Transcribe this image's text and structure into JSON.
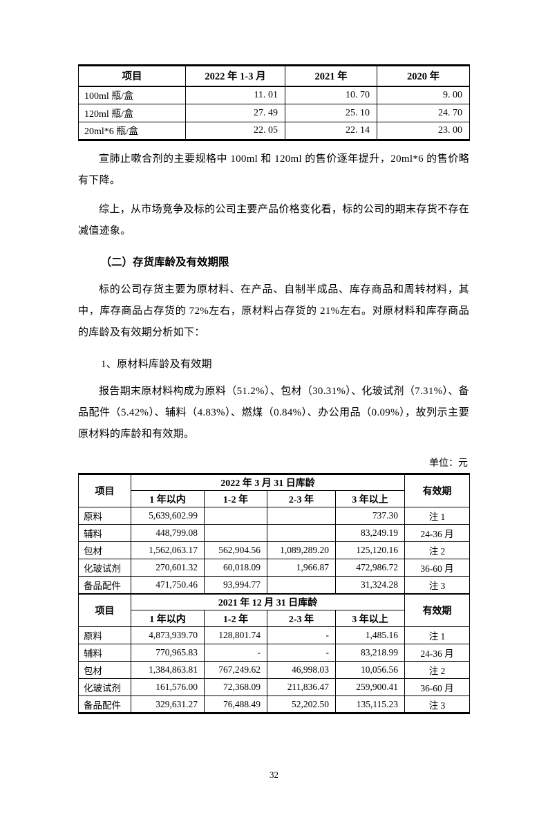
{
  "page": {
    "number": "32",
    "unit_label": "单位：元"
  },
  "price_table": {
    "headers": [
      "项目",
      "2022 年 1-3 月",
      "2021 年",
      "2020 年"
    ],
    "rows": [
      {
        "label": "100ml 瓶/盒",
        "values": [
          "11. 01",
          "10. 70",
          "9. 00"
        ]
      },
      {
        "label": "120ml 瓶/盒",
        "values": [
          "27. 49",
          "25. 10",
          "24. 70"
        ]
      },
      {
        "label": "20ml*6 瓶/盒",
        "values": [
          "22. 05",
          "22. 14",
          "23. 00"
        ]
      }
    ]
  },
  "paragraphs": {
    "p1": "宣肺止嗽合剂的主要规格中 100ml 和 120ml 的售价逐年提升，20ml*6 的售价略有下降。",
    "p2": "综上，从市场竞争及标的公司主要产品价格变化看，标的公司的期末存货不存在减值迹象。",
    "h1": "（二）存货库龄及有效期限",
    "p3": "标的公司存货主要为原材料、在产品、自制半成品、库存商品和周转材料，其中，库存商品占存货的 72%左右，原材料占存货的 21%左右。对原材料和库存商品的库龄及有效期分析如下：",
    "h2": "1、原材料库龄及有效期",
    "p4": "报告期末原材料构成为原料（51.2%）、包材（30.31%）、化玻试剂（7.31%）、备品配件（5.42%）、辅料（4.83%）、燃煤（0.84%）、办公用品（0.09%），故列示主要原材料的库龄和有效期。"
  },
  "aging_table": {
    "item_header": "项目",
    "validity_header": "有效期",
    "age_cols": [
      "1 年以内",
      "1-2 年",
      "2-3 年",
      "3 年以上"
    ],
    "sections": [
      {
        "period_header": "2022 年 3 月 31 日库龄",
        "rows": [
          {
            "item": "原料",
            "values": [
              "5,639,602.99",
              "",
              "",
              "737.30"
            ],
            "validity": "注 1"
          },
          {
            "item": "辅料",
            "values": [
              "448,799.08",
              "",
              "",
              "83,249.19"
            ],
            "validity": "24-36 月"
          },
          {
            "item": "包材",
            "values": [
              "1,562,063.17",
              "562,904.56",
              "1,089,289.20",
              "125,120.16"
            ],
            "validity": "注 2"
          },
          {
            "item": "化玻试剂",
            "values": [
              "270,601.32",
              "60,018.09",
              "1,966.87",
              "472,986.72"
            ],
            "validity": "36-60 月"
          },
          {
            "item": "备品配件",
            "values": [
              "471,750.46",
              "93,994.77",
              "",
              "31,324.28"
            ],
            "validity": "注 3"
          }
        ]
      },
      {
        "period_header": "2021 年 12 月 31 日库龄",
        "rows": [
          {
            "item": "原料",
            "values": [
              "4,873,939.70",
              "128,801.74",
              "-",
              "1,485.16"
            ],
            "validity": "注 1"
          },
          {
            "item": "辅料",
            "values": [
              "770,965.83",
              "-",
              "-",
              "83,218.99"
            ],
            "validity": "24-36 月"
          },
          {
            "item": "包材",
            "values": [
              "1,384,863.81",
              "767,249.62",
              "46,998.03",
              "10,056.56"
            ],
            "validity": "注 2"
          },
          {
            "item": "化玻试剂",
            "values": [
              "161,576.00",
              "72,368.09",
              "211,836.47",
              "259,900.41"
            ],
            "validity": "36-60 月"
          },
          {
            "item": "备品配件",
            "values": [
              "329,631.27",
              "76,488.49",
              "52,202.50",
              "135,115.23"
            ],
            "validity": "注 3"
          }
        ]
      }
    ]
  }
}
